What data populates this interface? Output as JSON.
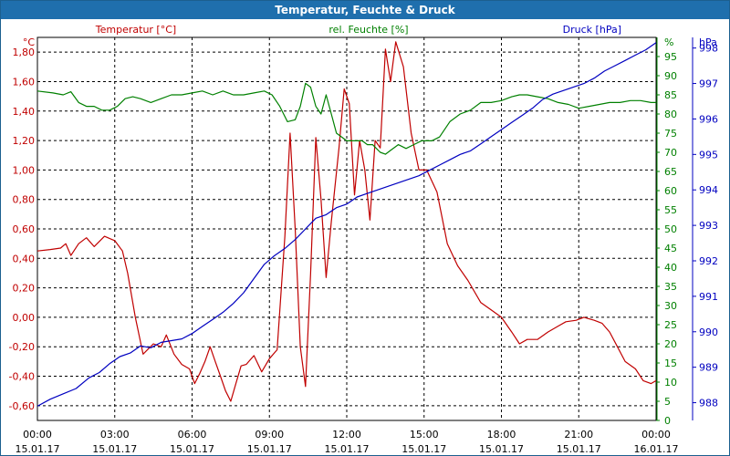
{
  "window_title": "Temperatur, Feuchte & Druck",
  "colors": {
    "temperature": "#c00000",
    "humidity": "#008000",
    "pressure": "#0000c0",
    "grid": "#000000",
    "title_bg": "#1f6fad"
  },
  "chart_data": {
    "type": "line",
    "title": "Temperatur, Feuchte & Druck",
    "grid": true,
    "x_axis": {
      "ticks": [
        "00:00",
        "03:00",
        "06:00",
        "09:00",
        "12:00",
        "15:00",
        "18:00",
        "21:00",
        "00:00"
      ],
      "dates": [
        "15.01.17",
        "15.01.17",
        "15.01.17",
        "15.01.17",
        "15.01.17",
        "15.01.17",
        "15.01.17",
        "15.01.17",
        "16.01.17"
      ],
      "range_hours": [
        0,
        24
      ]
    },
    "axes": {
      "temperature": {
        "label": "Temperatur [°C]",
        "unit": "°C",
        "ylim": [
          -0.7,
          1.9
        ],
        "ticks": [
          "-0,60",
          "-0,40",
          "-0,20",
          "0,00",
          "0,20",
          "0,40",
          "0,60",
          "0,80",
          "1,00",
          "1,20",
          "1,40",
          "1,60",
          "1,80"
        ]
      },
      "humidity": {
        "label": "rel. Feuchte [%]",
        "unit": "%",
        "ylim": [
          0,
          100
        ],
        "ticks": [
          "0",
          "5",
          "10",
          "15",
          "20",
          "25",
          "30",
          "35",
          "40",
          "45",
          "50",
          "55",
          "60",
          "65",
          "70",
          "75",
          "80",
          "85",
          "90",
          "95"
        ]
      },
      "pressure": {
        "label": "Druck [hPa]",
        "unit": "hPa",
        "ylim": [
          987.5,
          998.3
        ],
        "ticks": [
          "988",
          "989",
          "990",
          "991",
          "992",
          "993",
          "994",
          "995",
          "996",
          "997",
          "998"
        ]
      }
    },
    "series": [
      {
        "name": "Temperatur [°C]",
        "axis": "temperature",
        "color": "#c00000",
        "points": [
          [
            0,
            0.45
          ],
          [
            0.5,
            0.46
          ],
          [
            0.9,
            0.47
          ],
          [
            1.1,
            0.5
          ],
          [
            1.3,
            0.42
          ],
          [
            1.6,
            0.5
          ],
          [
            1.9,
            0.54
          ],
          [
            2.2,
            0.48
          ],
          [
            2.6,
            0.55
          ],
          [
            3.0,
            0.52
          ],
          [
            3.3,
            0.45
          ],
          [
            3.5,
            0.3
          ],
          [
            3.8,
            0.0
          ],
          [
            4.1,
            -0.25
          ],
          [
            4.5,
            -0.18
          ],
          [
            4.8,
            -0.2
          ],
          [
            5.0,
            -0.12
          ],
          [
            5.3,
            -0.25
          ],
          [
            5.6,
            -0.32
          ],
          [
            5.9,
            -0.35
          ],
          [
            6.1,
            -0.45
          ],
          [
            6.3,
            -0.38
          ],
          [
            6.5,
            -0.3
          ],
          [
            6.7,
            -0.2
          ],
          [
            6.9,
            -0.3
          ],
          [
            7.1,
            -0.4
          ],
          [
            7.3,
            -0.5
          ],
          [
            7.5,
            -0.57
          ],
          [
            7.7,
            -0.45
          ],
          [
            7.9,
            -0.33
          ],
          [
            8.1,
            -0.32
          ],
          [
            8.4,
            -0.26
          ],
          [
            8.7,
            -0.37
          ],
          [
            9.0,
            -0.28
          ],
          [
            9.3,
            -0.22
          ],
          [
            9.6,
            0.55
          ],
          [
            9.8,
            1.25
          ],
          [
            10.0,
            0.6
          ],
          [
            10.2,
            -0.2
          ],
          [
            10.4,
            -0.47
          ],
          [
            10.6,
            0.3
          ],
          [
            10.8,
            1.22
          ],
          [
            11.0,
            0.8
          ],
          [
            11.2,
            0.27
          ],
          [
            11.4,
            0.65
          ],
          [
            11.7,
            1.15
          ],
          [
            11.9,
            1.55
          ],
          [
            12.1,
            1.45
          ],
          [
            12.3,
            0.83
          ],
          [
            12.5,
            1.2
          ],
          [
            12.7,
            1.0
          ],
          [
            12.9,
            0.66
          ],
          [
            13.1,
            1.2
          ],
          [
            13.3,
            1.15
          ],
          [
            13.5,
            1.82
          ],
          [
            13.7,
            1.6
          ],
          [
            13.9,
            1.87
          ],
          [
            14.2,
            1.7
          ],
          [
            14.5,
            1.25
          ],
          [
            14.8,
            1.0
          ],
          [
            15.1,
            1.0
          ],
          [
            15.5,
            0.85
          ],
          [
            15.9,
            0.5
          ],
          [
            16.3,
            0.35
          ],
          [
            16.7,
            0.25
          ],
          [
            17.2,
            0.1
          ],
          [
            17.6,
            0.05
          ],
          [
            18.0,
            0.0
          ],
          [
            18.4,
            -0.1
          ],
          [
            18.7,
            -0.18
          ],
          [
            19.0,
            -0.15
          ],
          [
            19.4,
            -0.15
          ],
          [
            19.8,
            -0.1
          ],
          [
            20.2,
            -0.06
          ],
          [
            20.5,
            -0.03
          ],
          [
            20.9,
            -0.02
          ],
          [
            21.2,
            0.0
          ],
          [
            21.6,
            -0.02
          ],
          [
            21.9,
            -0.04
          ],
          [
            22.2,
            -0.1
          ],
          [
            22.5,
            -0.2
          ],
          [
            22.8,
            -0.3
          ],
          [
            23.2,
            -0.35
          ],
          [
            23.5,
            -0.43
          ],
          [
            23.8,
            -0.45
          ],
          [
            24.0,
            -0.43
          ]
        ]
      },
      {
        "name": "rel. Feuchte [%]",
        "axis": "humidity",
        "color": "#008000",
        "points": [
          [
            0,
            86
          ],
          [
            0.6,
            85.5
          ],
          [
            1.0,
            85
          ],
          [
            1.3,
            85.8
          ],
          [
            1.6,
            83
          ],
          [
            1.9,
            82
          ],
          [
            2.2,
            82
          ],
          [
            2.5,
            81
          ],
          [
            2.8,
            81
          ],
          [
            3.1,
            82
          ],
          [
            3.4,
            84
          ],
          [
            3.7,
            84.5
          ],
          [
            4.0,
            84
          ],
          [
            4.4,
            83
          ],
          [
            4.8,
            84
          ],
          [
            5.2,
            85
          ],
          [
            5.6,
            85
          ],
          [
            6.0,
            85.5
          ],
          [
            6.4,
            86
          ],
          [
            6.8,
            85
          ],
          [
            7.2,
            86
          ],
          [
            7.6,
            85
          ],
          [
            8.0,
            85
          ],
          [
            8.4,
            85.5
          ],
          [
            8.8,
            86
          ],
          [
            9.1,
            85
          ],
          [
            9.4,
            82
          ],
          [
            9.7,
            78
          ],
          [
            10.0,
            78.5
          ],
          [
            10.2,
            82
          ],
          [
            10.4,
            88
          ],
          [
            10.6,
            87
          ],
          [
            10.8,
            82
          ],
          [
            11.0,
            80
          ],
          [
            11.2,
            85
          ],
          [
            11.4,
            80
          ],
          [
            11.6,
            75
          ],
          [
            12.0,
            73
          ],
          [
            12.3,
            73
          ],
          [
            12.6,
            73
          ],
          [
            12.8,
            72
          ],
          [
            13.0,
            72
          ],
          [
            13.3,
            70
          ],
          [
            13.5,
            69.5
          ],
          [
            13.7,
            70.5
          ],
          [
            14.0,
            72
          ],
          [
            14.3,
            71
          ],
          [
            14.6,
            72
          ],
          [
            14.9,
            73
          ],
          [
            15.3,
            73
          ],
          [
            15.6,
            74
          ],
          [
            16.0,
            78
          ],
          [
            16.4,
            80
          ],
          [
            16.8,
            81
          ],
          [
            17.2,
            83
          ],
          [
            17.6,
            83
          ],
          [
            18.0,
            83.5
          ],
          [
            18.4,
            84.5
          ],
          [
            18.7,
            85
          ],
          [
            19.0,
            85
          ],
          [
            19.4,
            84.5
          ],
          [
            19.8,
            84
          ],
          [
            20.2,
            83
          ],
          [
            20.6,
            82.5
          ],
          [
            21.0,
            81.5
          ],
          [
            21.4,
            82
          ],
          [
            21.8,
            82.5
          ],
          [
            22.2,
            83
          ],
          [
            22.6,
            83
          ],
          [
            23.0,
            83.5
          ],
          [
            23.4,
            83.5
          ],
          [
            23.8,
            83
          ],
          [
            24.0,
            83
          ]
        ]
      },
      {
        "name": "Druck [hPa]",
        "axis": "pressure",
        "color": "#0000c0",
        "points": [
          [
            0,
            987.9
          ],
          [
            0.5,
            988.1
          ],
          [
            1.0,
            988.25
          ],
          [
            1.5,
            988.4
          ],
          [
            2.0,
            988.7
          ],
          [
            2.4,
            988.85
          ],
          [
            2.8,
            989.1
          ],
          [
            3.2,
            989.3
          ],
          [
            3.6,
            989.4
          ],
          [
            4.0,
            989.6
          ],
          [
            4.4,
            989.55
          ],
          [
            4.8,
            989.7
          ],
          [
            5.2,
            989.75
          ],
          [
            5.6,
            989.8
          ],
          [
            6.0,
            989.95
          ],
          [
            6.4,
            990.15
          ],
          [
            6.8,
            990.35
          ],
          [
            7.2,
            990.55
          ],
          [
            7.6,
            990.8
          ],
          [
            8.0,
            991.1
          ],
          [
            8.4,
            991.5
          ],
          [
            8.8,
            991.9
          ],
          [
            9.2,
            992.15
          ],
          [
            9.6,
            992.35
          ],
          [
            10.0,
            992.6
          ],
          [
            10.4,
            992.9
          ],
          [
            10.8,
            993.2
          ],
          [
            11.2,
            993.3
          ],
          [
            11.6,
            993.5
          ],
          [
            12.0,
            993.6
          ],
          [
            12.4,
            993.8
          ],
          [
            12.8,
            993.9
          ],
          [
            13.2,
            994.0
          ],
          [
            13.6,
            994.1
          ],
          [
            14.0,
            994.2
          ],
          [
            14.4,
            994.3
          ],
          [
            14.8,
            994.4
          ],
          [
            15.2,
            994.55
          ],
          [
            15.6,
            994.7
          ],
          [
            16.0,
            994.85
          ],
          [
            16.4,
            995.0
          ],
          [
            16.8,
            995.1
          ],
          [
            17.2,
            995.3
          ],
          [
            17.6,
            995.5
          ],
          [
            18.0,
            995.7
          ],
          [
            18.4,
            995.9
          ],
          [
            18.8,
            996.1
          ],
          [
            19.2,
            996.3
          ],
          [
            19.6,
            996.55
          ],
          [
            20.0,
            996.7
          ],
          [
            20.4,
            996.8
          ],
          [
            20.8,
            996.9
          ],
          [
            21.2,
            997.0
          ],
          [
            21.6,
            997.15
          ],
          [
            22.0,
            997.35
          ],
          [
            22.4,
            997.5
          ],
          [
            22.8,
            997.65
          ],
          [
            23.2,
            997.8
          ],
          [
            23.6,
            997.95
          ],
          [
            24.0,
            998.15
          ]
        ]
      }
    ]
  }
}
